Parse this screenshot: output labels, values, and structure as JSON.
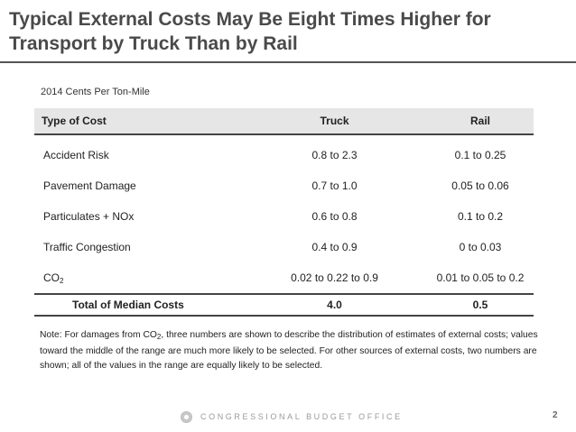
{
  "slide": {
    "title_line1": "Typical External Costs May Be Eight Times Higher for",
    "title_line2": "Transport by Truck Than by Rail",
    "unit_label": "2014 Cents Per Ton-Mile"
  },
  "table": {
    "headers": [
      "Type of Cost",
      "Truck",
      "Rail"
    ],
    "rows": [
      {
        "type": "Accident Risk",
        "truck": "0.8 to 2.3",
        "rail": "0.1 to 0.25"
      },
      {
        "type": "Pavement Damage",
        "truck": "0.7 to 1.0",
        "rail": "0.05 to 0.06"
      },
      {
        "type": "Particulates + NOx",
        "truck": "0.6 to 0.8",
        "rail": "0.1 to 0.2"
      },
      {
        "type": "Traffic Congestion",
        "truck": "0.4 to 0.9",
        "rail": "0 to 0.03"
      },
      {
        "type_base": "CO",
        "type_sub": "2",
        "truck": "0.02 to 0.22 to 0.9",
        "rail": "0.01 to 0.05 to 0.2"
      }
    ],
    "total": {
      "type": "Total of Median Costs",
      "truck": "4.0",
      "rail": "0.5"
    }
  },
  "note": {
    "part1": "Note: For damages from CO",
    "sub": "2",
    "part2": ", three numbers are shown to describe the distribution of estimates of external costs; values toward the middle of the range are much more likely to be selected. For other sources of external costs, two numbers are shown; all of the values in the range are equally likely to be selected."
  },
  "footer": {
    "org": "CONGRESSIONAL BUDGET OFFICE",
    "page": "2",
    "logo_icon": "cbo-logo-icon"
  }
}
